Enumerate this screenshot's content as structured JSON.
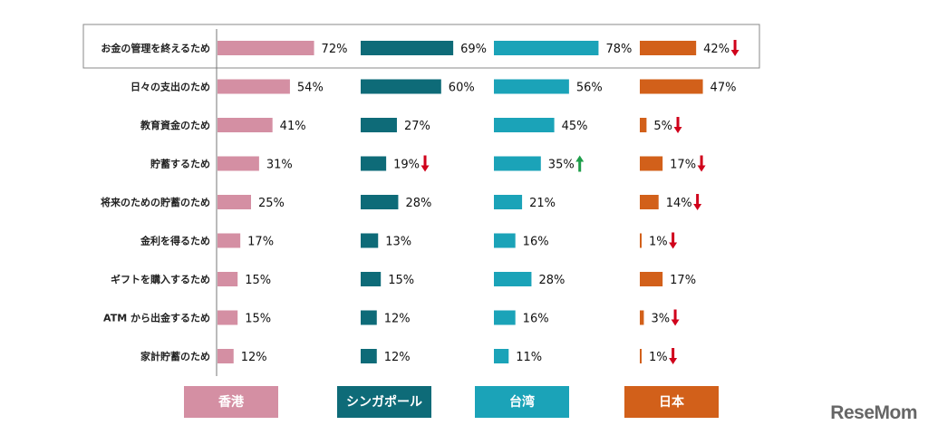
{
  "chart_data": {
    "type": "bar",
    "orientation": "horizontal",
    "categories": [
      "お金の管理を終えるため",
      "日々の支出のため",
      "教育資金のため",
      "貯蓄するため",
      "将来のための貯蓄のため",
      "金利を得るため",
      "ギフトを購入するため",
      "ATM から出金するため",
      "家計貯蓄のため"
    ],
    "unit": "%",
    "highlighted_category": "お金の管理を終えるため",
    "series": [
      {
        "name": "香港",
        "color": "#d48fa3",
        "values": [
          72,
          54,
          41,
          31,
          25,
          17,
          15,
          15,
          12
        ],
        "trends": [
          null,
          null,
          null,
          null,
          null,
          null,
          null,
          null,
          null
        ]
      },
      {
        "name": "シンガポール",
        "color": "#0e6b78",
        "values": [
          69,
          60,
          27,
          19,
          28,
          13,
          15,
          12,
          12
        ],
        "trends": [
          null,
          null,
          null,
          "down",
          null,
          null,
          null,
          null,
          null
        ]
      },
      {
        "name": "台湾",
        "color": "#1ba3b8",
        "values": [
          78,
          56,
          45,
          35,
          21,
          16,
          28,
          16,
          11
        ],
        "trends": [
          null,
          null,
          null,
          "up",
          null,
          null,
          null,
          null,
          null
        ]
      },
      {
        "name": "日本",
        "color": "#d2601a",
        "values": [
          42,
          47,
          5,
          17,
          14,
          1,
          17,
          3,
          1
        ],
        "trends": [
          "down",
          null,
          "down",
          "down",
          "down",
          "down",
          null,
          "down",
          "down"
        ]
      }
    ],
    "trend_colors": {
      "down": "#d0021b",
      "up": "#1e9e4a"
    },
    "legend_placement": "bottom",
    "grid": false
  },
  "watermark": "ReseMom"
}
